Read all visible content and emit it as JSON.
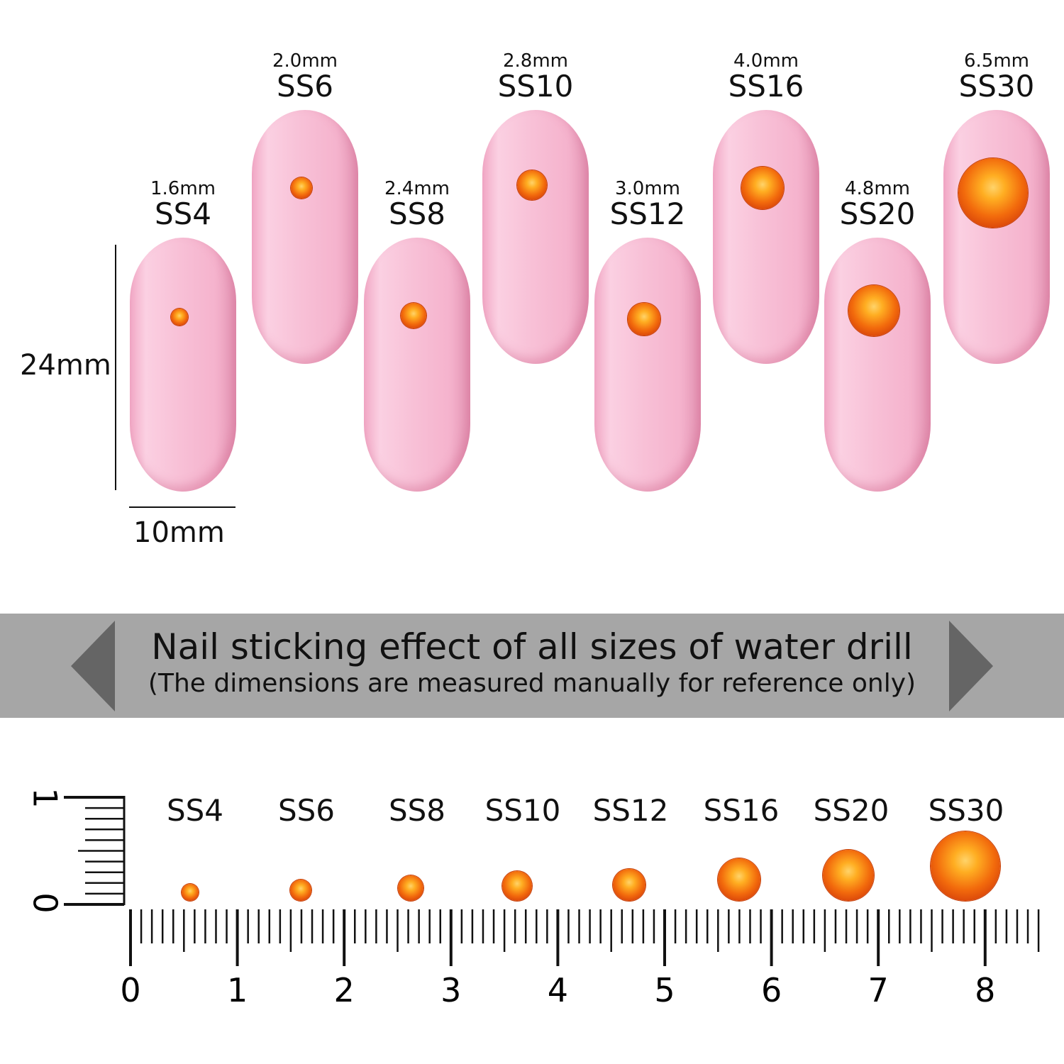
{
  "nails": [
    {
      "ss": "SS4",
      "mm": "1.6mm",
      "gem_mm": 1.6
    },
    {
      "ss": "SS6",
      "mm": "2.0mm",
      "gem_mm": 2.0
    },
    {
      "ss": "SS8",
      "mm": "2.4mm",
      "gem_mm": 2.4
    },
    {
      "ss": "SS10",
      "mm": "2.8mm",
      "gem_mm": 2.8
    },
    {
      "ss": "SS12",
      "mm": "3.0mm",
      "gem_mm": 3.0
    },
    {
      "ss": "SS16",
      "mm": "4.0mm",
      "gem_mm": 4.0
    },
    {
      "ss": "SS20",
      "mm": "4.8mm",
      "gem_mm": 4.8
    },
    {
      "ss": "SS30",
      "mm": "6.5mm",
      "gem_mm": 6.5
    }
  ],
  "nail_length": "24mm",
  "nail_width": "10mm",
  "banner": {
    "title": "Nail sticking effect of all sizes of water drill",
    "subtitle": "(The dimensions are measured manually for reference only)"
  },
  "ruler": {
    "labels": [
      "0",
      "1",
      "2",
      "3",
      "4",
      "5",
      "6",
      "7",
      "8"
    ],
    "vertical_labels": [
      "0",
      "1"
    ]
  },
  "colors": {
    "nail": "#f8c1d7",
    "gem": "#f26a0c",
    "banner": "#a6a6a6"
  }
}
